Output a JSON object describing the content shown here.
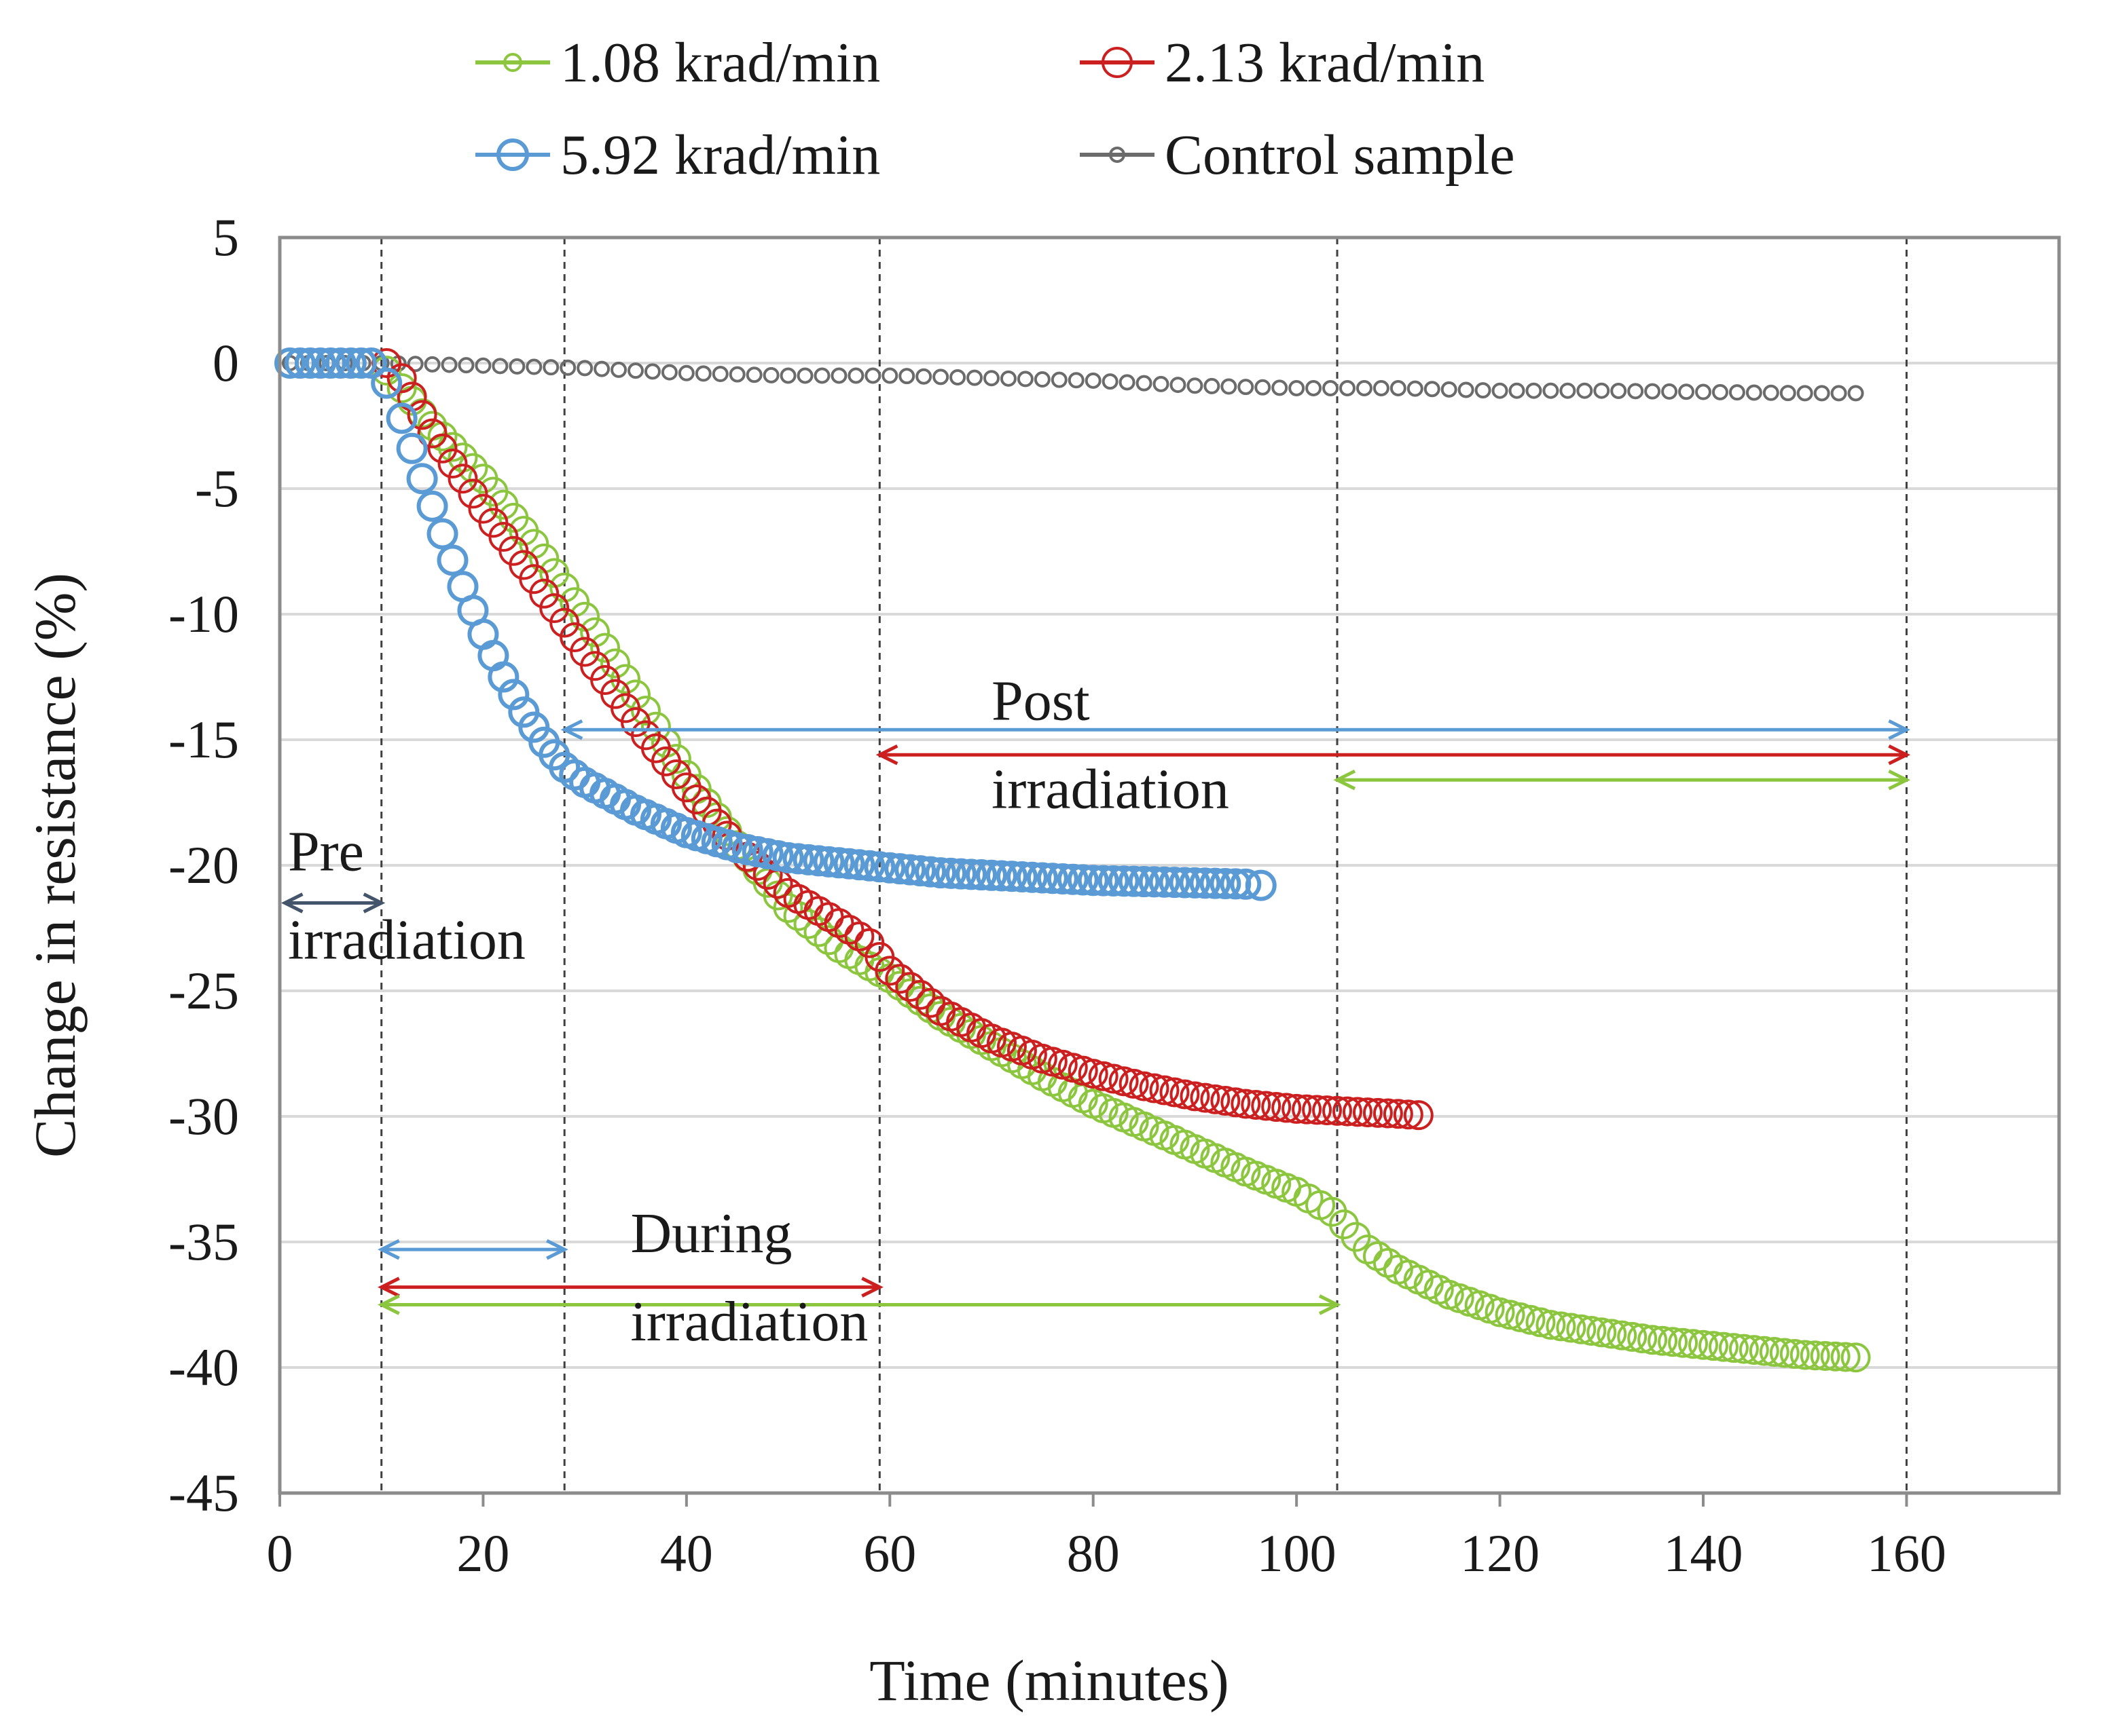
{
  "chart_data": {
    "type": "scatter",
    "title": "",
    "xlabel": "Time (minutes)",
    "ylabel": "Change in resistance (%)",
    "xlim": [
      0,
      175
    ],
    "ylim": [
      -45,
      5
    ],
    "xticks": [
      0,
      20,
      40,
      60,
      80,
      100,
      120,
      140,
      160
    ],
    "yticks": [
      5,
      0,
      -5,
      -10,
      -15,
      -20,
      -25,
      -30,
      -35,
      -40,
      -45
    ],
    "grid": "horizontal",
    "legend": "top",
    "series": [
      {
        "name": "1.08 krad/min",
        "color": "#8cc63f",
        "marker": "large-circle",
        "x": [
          1,
          5,
          9,
          10.5,
          12,
          15,
          20,
          25,
          30,
          35,
          40,
          45,
          50,
          55,
          60,
          65,
          70,
          75,
          80,
          85,
          90,
          95,
          100,
          103.5,
          107,
          110,
          115,
          120,
          125,
          130,
          135,
          140,
          145,
          150,
          155
        ],
        "y": [
          0,
          0,
          0,
          -0.3,
          -1,
          -2.5,
          -4.6,
          -7.2,
          -10.1,
          -13.2,
          -16.4,
          -19.2,
          -21.7,
          -23.3,
          -24.5,
          -26.0,
          -27.2,
          -28.4,
          -29.5,
          -30.4,
          -31.3,
          -32.2,
          -33.0,
          -33.8,
          -35.3,
          -36.1,
          -37.1,
          -37.8,
          -38.3,
          -38.6,
          -38.9,
          -39.1,
          -39.3,
          -39.5,
          -39.6
        ]
      },
      {
        "name": "2.13 krad/min",
        "color": "#cc1f1f",
        "marker": "large-circle",
        "x": [
          1,
          5,
          9,
          10.5,
          12,
          15,
          20,
          25,
          30,
          35,
          40,
          45,
          50,
          55,
          58,
          60,
          65,
          70,
          75,
          80,
          85,
          90,
          95,
          100,
          105,
          110,
          112
        ],
        "y": [
          0,
          0,
          0,
          0,
          -0.6,
          -2.8,
          -5.8,
          -8.6,
          -11.5,
          -14.3,
          -16.9,
          -19.3,
          -21.1,
          -22.3,
          -23.1,
          -24.2,
          -25.8,
          -26.9,
          -27.7,
          -28.3,
          -28.8,
          -29.2,
          -29.5,
          -29.7,
          -29.8,
          -29.9,
          -29.95
        ]
      },
      {
        "name": "5.92 krad/min",
        "color": "#5b9bd5",
        "marker": "large-circle",
        "x": [
          1,
          5,
          9,
          10.5,
          12,
          14,
          16,
          18,
          20,
          22,
          24,
          26,
          28,
          30,
          35,
          40,
          45,
          50,
          55,
          60,
          65,
          70,
          75,
          80,
          85,
          90,
          95,
          96.5
        ],
        "y": [
          0,
          0,
          0,
          -0.8,
          -2.2,
          -4.6,
          -6.8,
          -8.9,
          -10.8,
          -12.5,
          -13.9,
          -15.1,
          -16.1,
          -16.7,
          -17.8,
          -18.7,
          -19.3,
          -19.7,
          -19.9,
          -20.1,
          -20.3,
          -20.4,
          -20.5,
          -20.6,
          -20.65,
          -20.7,
          -20.75,
          -20.8
        ]
      },
      {
        "name": "Control sample",
        "color": "#6b6b6b",
        "marker": "small-circle",
        "x": [
          1,
          10,
          20,
          30,
          40,
          50,
          60,
          70,
          80,
          90,
          100,
          110,
          120,
          130,
          140,
          150,
          155
        ],
        "y": [
          0,
          0,
          -0.1,
          -0.2,
          -0.4,
          -0.5,
          -0.5,
          -0.6,
          -0.7,
          -0.9,
          -1.0,
          -1.0,
          -1.1,
          -1.1,
          -1.15,
          -1.2,
          -1.2
        ]
      }
    ],
    "reference_lines_x": [
      10,
      28,
      59,
      104,
      160
    ],
    "annotations": [
      {
        "text_lines": [
          "Pre",
          "irradiation"
        ],
        "arrow": {
          "x1": 0.5,
          "x2": 10,
          "y": -21.5
        },
        "color": "#44546a"
      },
      {
        "text_lines": [
          "During",
          "irradiation"
        ],
        "arrows": [
          {
            "x1": 10,
            "x2": 28,
            "y": -35.3,
            "color": "#5b9bd5"
          },
          {
            "x1": 10,
            "x2": 59,
            "y": -36.8,
            "color": "#cc1f1f"
          },
          {
            "x1": 10,
            "x2": 104,
            "y": -37.5,
            "color": "#8cc63f"
          }
        ]
      },
      {
        "text_lines": [
          "Post",
          "irradiation"
        ],
        "arrows": [
          {
            "x1": 28,
            "x2": 160,
            "y": -14.6,
            "color": "#5b9bd5"
          },
          {
            "x1": 59,
            "x2": 160,
            "y": -15.6,
            "color": "#cc1f1f"
          },
          {
            "x1": 104,
            "x2": 160,
            "y": -16.6,
            "color": "#8cc63f"
          }
        ]
      }
    ]
  }
}
